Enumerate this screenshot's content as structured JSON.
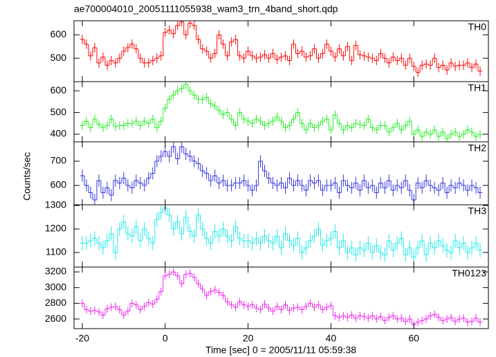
{
  "chart_data": {
    "type": "line",
    "title": "ae700004010_20051111055938_wam3_trn_4band_short.qdp",
    "x_label": "Time [sec] 0 = 2005/11/11 05:59:38",
    "y_label": "Counts/sec",
    "xlim": [
      -22,
      78
    ],
    "xticks": [
      -20,
      0,
      20,
      40,
      60
    ],
    "x": [
      -20,
      -19,
      -18,
      -17,
      -16,
      -15,
      -14,
      -13,
      -12,
      -11,
      -10,
      -9,
      -8,
      -7,
      -6,
      -5,
      -4,
      -3,
      -2,
      -1,
      0,
      1,
      2,
      3,
      4,
      5,
      6,
      7,
      8,
      9,
      10,
      11,
      12,
      13,
      14,
      15,
      16,
      17,
      18,
      19,
      20,
      21,
      22,
      23,
      24,
      25,
      26,
      27,
      28,
      29,
      30,
      31,
      32,
      33,
      34,
      35,
      36,
      37,
      38,
      39,
      40,
      41,
      42,
      43,
      44,
      45,
      46,
      47,
      48,
      49,
      50,
      51,
      52,
      53,
      54,
      55,
      56,
      57,
      58,
      59,
      60,
      61,
      62,
      63,
      64,
      65,
      66,
      67,
      68,
      69,
      70,
      71,
      72,
      73,
      74,
      75,
      76
    ],
    "series": [
      {
        "name": "TH0",
        "color": "#ff0000",
        "error": 20,
        "ylim": [
          400,
          660
        ],
        "yticks": [
          500,
          600
        ],
        "values": [
          580,
          560,
          510,
          545,
          480,
          505,
          470,
          490,
          480,
          500,
          530,
          545,
          560,
          540,
          500,
          480,
          480,
          490,
          500,
          510,
          610,
          620,
          605,
          640,
          655,
          600,
          650,
          640,
          580,
          540,
          530,
          500,
          520,
          600,
          560,
          510,
          570,
          580,
          510,
          500,
          530,
          510,
          500,
          505,
          515,
          500,
          520,
          495,
          505,
          510,
          490,
          560,
          520,
          530,
          505,
          510,
          540,
          500,
          520,
          560,
          530,
          505,
          540,
          510,
          550,
          490,
          555,
          515,
          510,
          505,
          500,
          490,
          520,
          500,
          480,
          505,
          490,
          500,
          470,
          500,
          465,
          440,
          470,
          475,
          470,
          500,
          460,
          470,
          450,
          480,
          465,
          470,
          470,
          480,
          460,
          475,
          445
        ]
      },
      {
        "name": "TH1",
        "color": "#22ee22",
        "error": 20,
        "ylim": [
          365,
          642
        ],
        "yticks": [
          400,
          500,
          600
        ],
        "values": [
          440,
          460,
          430,
          470,
          445,
          430,
          440,
          470,
          435,
          440,
          440,
          450,
          450,
          460,
          440,
          460,
          450,
          470,
          430,
          460,
          520,
          560,
          580,
          600,
          610,
          630,
          600,
          580,
          560,
          560,
          570,
          540,
          530,
          510,
          490,
          500,
          470,
          440,
          500,
          470,
          460,
          450,
          470,
          460,
          440,
          450,
          460,
          480,
          460,
          430,
          440,
          470,
          500,
          450,
          420,
          450,
          430,
          440,
          460,
          470,
          420,
          490,
          450,
          420,
          440,
          430,
          450,
          445,
          440,
          470,
          430,
          420,
          440,
          440,
          410,
          430,
          450,
          420,
          440,
          460,
          400,
          420,
          390,
          410,
          400,
          420,
          390,
          410,
          380,
          400,
          410,
          390,
          400,
          420,
          410,
          390,
          400
        ]
      },
      {
        "name": "TH2",
        "color": "#3333dd",
        "error": 25,
        "ylim": [
          520,
          780
        ],
        "yticks": [
          600,
          700
        ],
        "values": [
          640,
          600,
          570,
          540,
          620,
          570,
          590,
          560,
          620,
          610,
          630,
          600,
          590,
          620,
          610,
          600,
          630,
          650,
          700,
          720,
          740,
          720,
          760,
          710,
          760,
          730,
          720,
          700,
          690,
          660,
          650,
          620,
          640,
          610,
          620,
          600,
          600,
          610,
          610,
          620,
          600,
          580,
          600,
          700,
          660,
          630,
          610,
          600,
          610,
          590,
          630,
          600,
          620,
          600,
          580,
          620,
          610,
          620,
          580,
          600,
          600,
          610,
          570,
          620,
          600,
          590,
          610,
          580,
          620,
          590,
          600,
          570,
          610,
          590,
          620,
          580,
          600,
          590,
          620,
          580,
          540,
          610,
          590,
          620,
          600,
          590,
          580,
          610,
          570,
          600,
          590,
          610,
          600,
          580,
          600,
          590,
          570
        ]
      },
      {
        "name": "TH3",
        "color": "#22e8e8",
        "error": 30,
        "ylim": [
          1038,
          1303
        ],
        "yticks": [
          1100,
          1200,
          1300
        ],
        "values": [
          1140,
          1140,
          1150,
          1160,
          1140,
          1120,
          1150,
          1180,
          1100,
          1200,
          1230,
          1180,
          1170,
          1210,
          1150,
          1200,
          1160,
          1140,
          1240,
          1270,
          1290,
          1260,
          1200,
          1230,
          1180,
          1250,
          1190,
          1170,
          1260,
          1200,
          1160,
          1140,
          1190,
          1170,
          1200,
          1170,
          1150,
          1210,
          1160,
          1150,
          1150,
          1140,
          1160,
          1140,
          1170,
          1150,
          1140,
          1170,
          1120,
          1180,
          1150,
          1130,
          1160,
          1100,
          1120,
          1150,
          1170,
          1200,
          1130,
          1150,
          1160,
          1190,
          1120,
          1150,
          1100,
          1120,
          1090,
          1120,
          1110,
          1140,
          1100,
          1130,
          1100,
          1090,
          1150,
          1110,
          1140,
          1160,
          1090,
          1120,
          1080,
          1120,
          1150,
          1090,
          1140,
          1120,
          1150,
          1130,
          1110,
          1100,
          1150,
          1120,
          1140,
          1100,
          1120,
          1140,
          1110
        ]
      },
      {
        "name": "TH0123",
        "color": "#ee22ee",
        "error": 50,
        "ylim": [
          2477,
          3262
        ],
        "yticks": [
          2600,
          2800,
          3000,
          3200
        ],
        "values": [
          2800,
          2720,
          2700,
          2710,
          2690,
          2650,
          2730,
          2750,
          2760,
          2720,
          2650,
          2700,
          2800,
          2780,
          2720,
          2760,
          2810,
          2790,
          2850,
          2950,
          3150,
          3170,
          3200,
          3150,
          3050,
          3170,
          3180,
          3130,
          3050,
          2980,
          2900,
          2950,
          2970,
          2940,
          2900,
          2820,
          2780,
          2750,
          2820,
          2780,
          2760,
          2780,
          2740,
          2720,
          2790,
          2740,
          2700,
          2760,
          2720,
          2780,
          2710,
          2740,
          2750,
          2720,
          2760,
          2800,
          2750,
          2780,
          2720,
          2750,
          2770,
          2640,
          2620,
          2640,
          2620,
          2650,
          2610,
          2640,
          2630,
          2610,
          2640,
          2600,
          2630,
          2580,
          2620,
          2640,
          2600,
          2610,
          2570,
          2600,
          2530,
          2560,
          2580,
          2600,
          2640,
          2660,
          2620,
          2580,
          2600,
          2620,
          2570,
          2600,
          2610,
          2560,
          2570,
          2610,
          2560
        ]
      }
    ]
  }
}
